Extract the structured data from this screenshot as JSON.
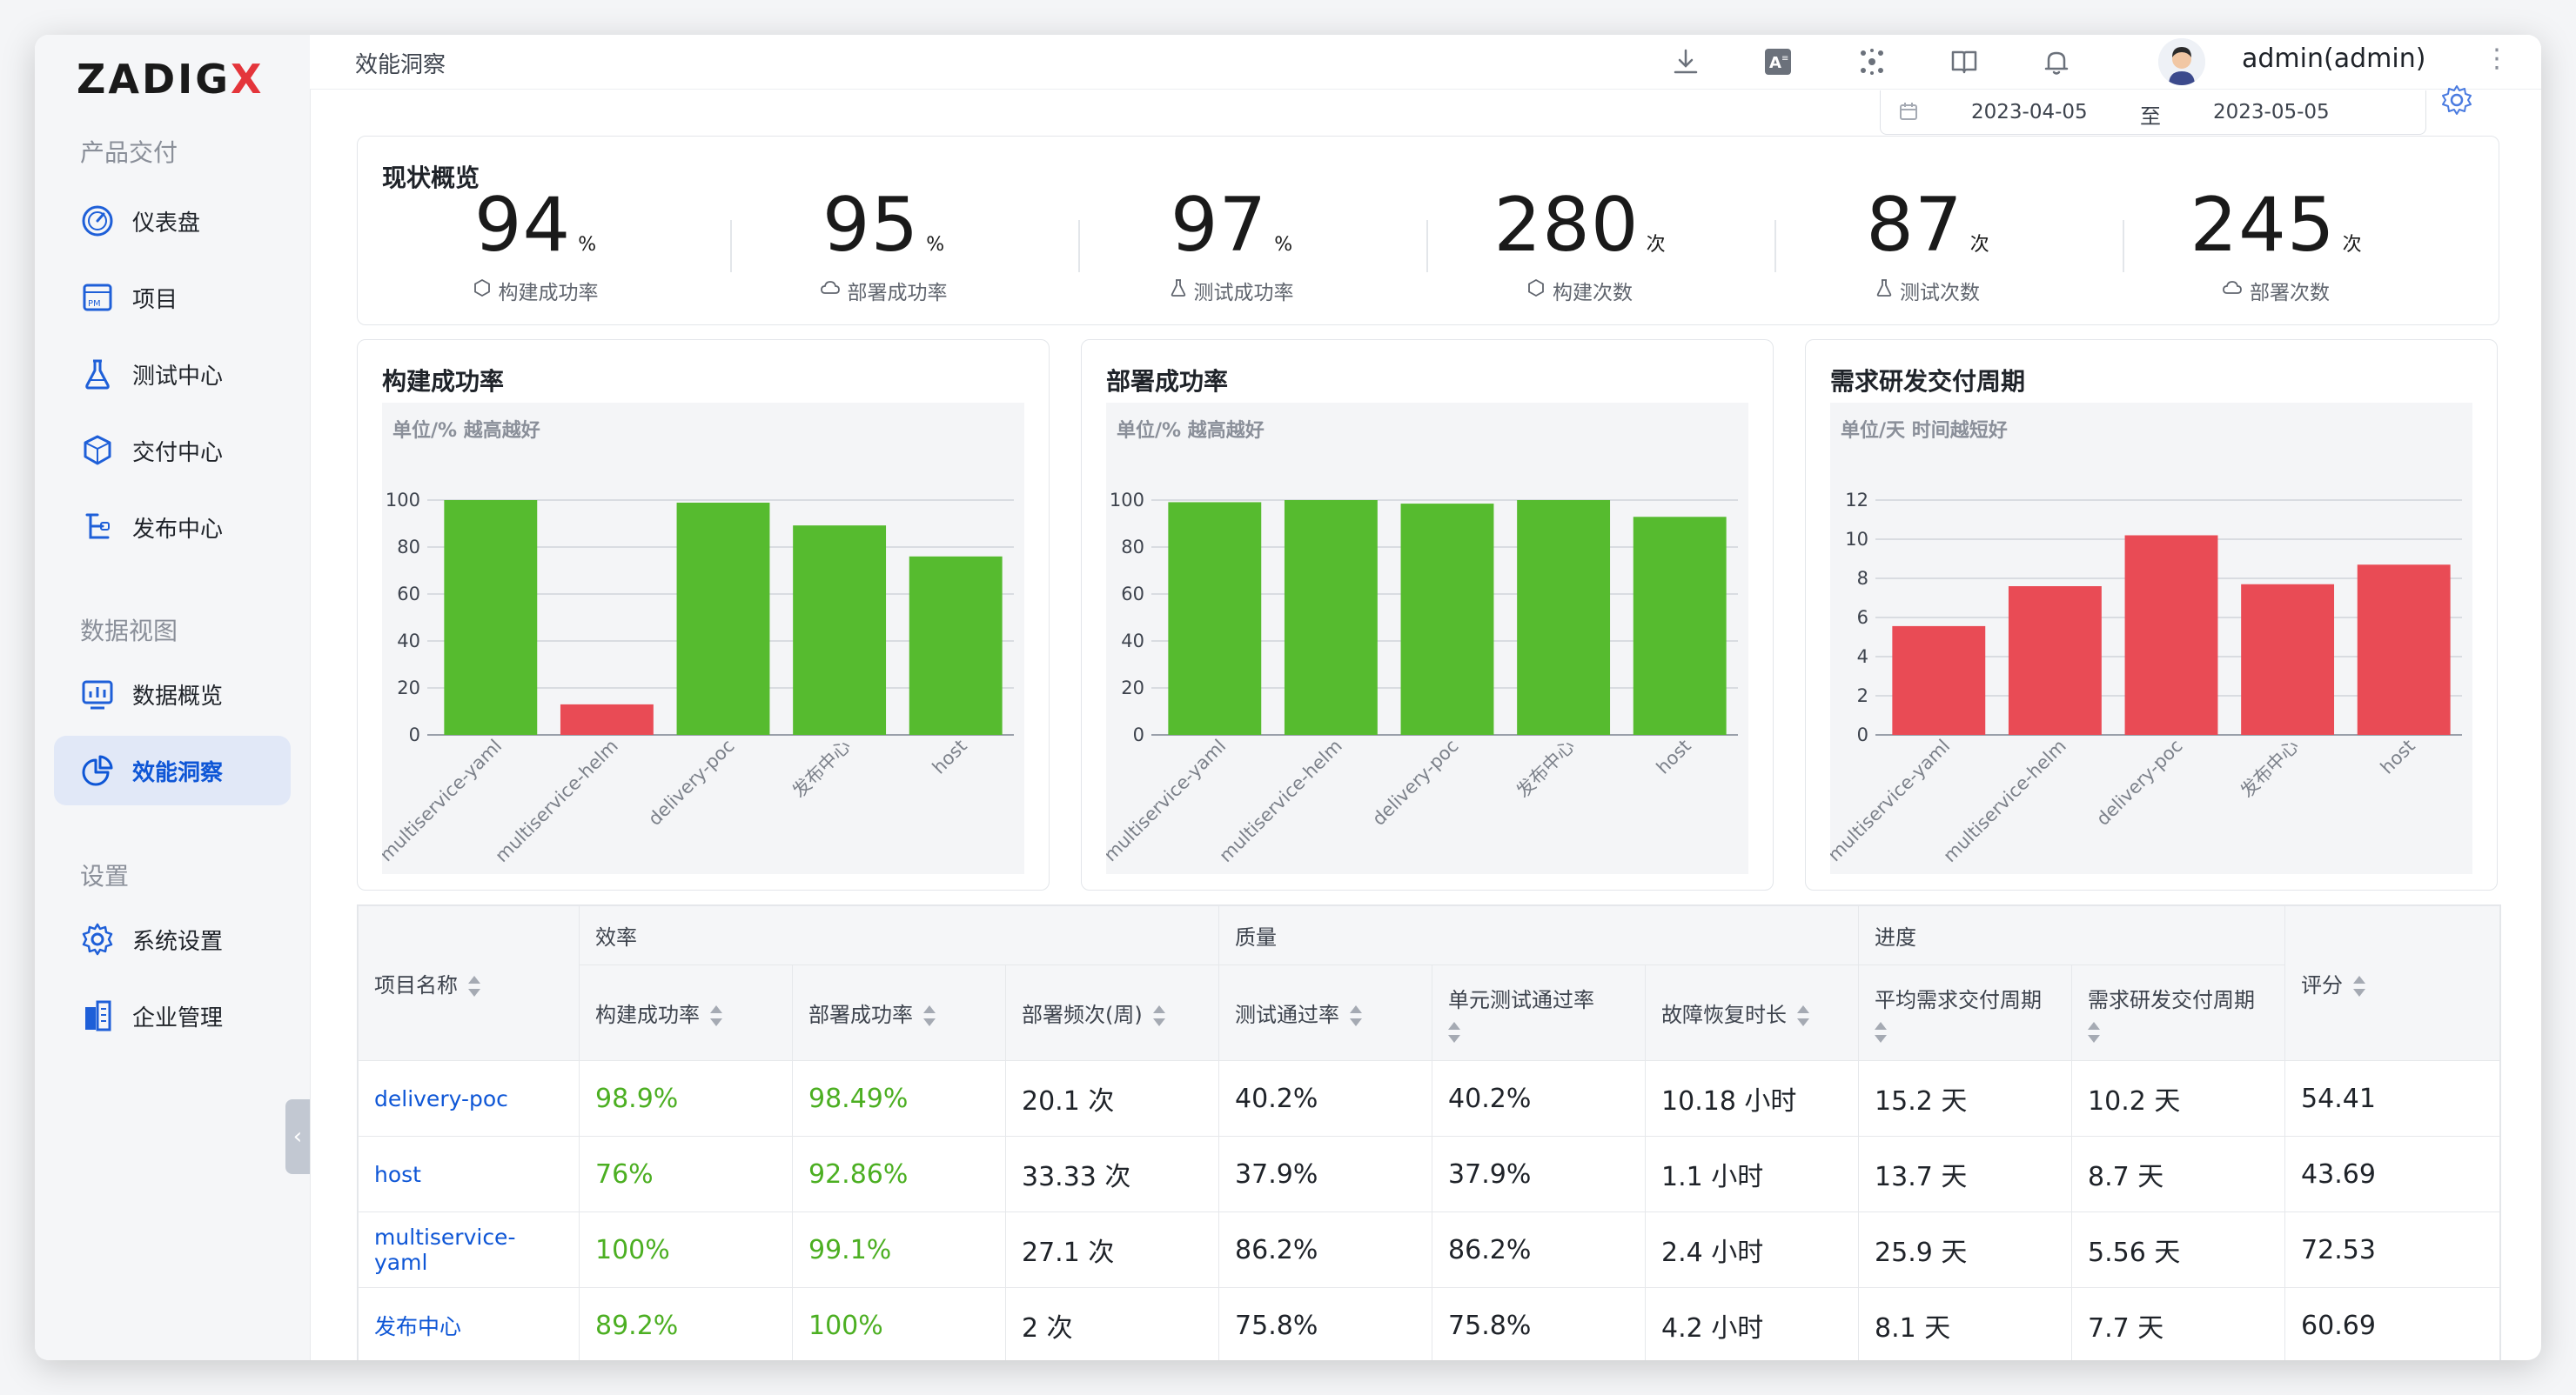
{
  "app": {
    "logo_text": "ZADIG",
    "logo_x": "X"
  },
  "sidebar": {
    "sections": [
      {
        "title": "产品交付"
      },
      {
        "title": "数据视图"
      },
      {
        "title": "设置"
      }
    ],
    "items": [
      {
        "label": "仪表盘",
        "icon": "dashboard-icon"
      },
      {
        "label": "项目",
        "icon": "project-icon"
      },
      {
        "label": "测试中心",
        "icon": "flask-icon"
      },
      {
        "label": "交付中心",
        "icon": "package-icon"
      },
      {
        "label": "发布中心",
        "icon": "release-icon"
      },
      {
        "label": "数据概览",
        "icon": "monitor-chart-icon"
      },
      {
        "label": "效能洞察",
        "icon": "pie-chart-icon",
        "active": true
      },
      {
        "label": "系统设置",
        "icon": "gear-icon"
      },
      {
        "label": "企业管理",
        "icon": "building-icon"
      }
    ]
  },
  "topbar": {
    "breadcrumb": "效能洞察",
    "username": "admin(admin)",
    "icons": [
      "download-icon",
      "translate-icon",
      "apps-icon",
      "book-icon",
      "bell-icon"
    ]
  },
  "date_range": {
    "start": "2023-04-05",
    "separator": "至",
    "end": "2023-05-05"
  },
  "overview": {
    "title": "现状概览",
    "stats": [
      {
        "value": "94",
        "unit": "%",
        "label": "构建成功率"
      },
      {
        "value": "95",
        "unit": "%",
        "label": "部署成功率"
      },
      {
        "value": "97",
        "unit": "%",
        "label": "测试成功率"
      },
      {
        "value": "280",
        "unit": "次",
        "label": "构建次数"
      },
      {
        "value": "87",
        "unit": "次",
        "label": "测试次数"
      },
      {
        "value": "245",
        "unit": "次",
        "label": "部署次数"
      }
    ]
  },
  "chart_data": [
    {
      "type": "bar",
      "title": "构建成功率",
      "subtitle": "单位/% 越高越好",
      "categories": [
        "multiservice-yaml",
        "multiservice-helm",
        "delivery-poc",
        "发布中心",
        "host"
      ],
      "values": [
        100,
        13,
        98.9,
        89.2,
        76
      ],
      "bar_colors": [
        "#56bb2f",
        "#e94b55",
        "#56bb2f",
        "#56bb2f",
        "#56bb2f"
      ],
      "ylim": [
        0,
        100
      ],
      "yticks": [
        0,
        20,
        40,
        60,
        80,
        100
      ]
    },
    {
      "type": "bar",
      "title": "部署成功率",
      "subtitle": "单位/% 越高越好",
      "categories": [
        "multiservice-yaml",
        "multiservice-helm",
        "delivery-poc",
        "发布中心",
        "host"
      ],
      "values": [
        99.1,
        100,
        98.49,
        100,
        92.86
      ],
      "bar_colors": [
        "#56bb2f",
        "#56bb2f",
        "#56bb2f",
        "#56bb2f",
        "#56bb2f"
      ],
      "ylim": [
        0,
        100
      ],
      "yticks": [
        0,
        20,
        40,
        60,
        80,
        100
      ]
    },
    {
      "type": "bar",
      "title": "需求研发交付周期",
      "subtitle": "单位/天 时间越短好",
      "categories": [
        "multiservice-yaml",
        "multiservice-helm",
        "delivery-poc",
        "发布中心",
        "host"
      ],
      "values": [
        5.56,
        7.6,
        10.2,
        7.7,
        8.7
      ],
      "bar_colors": [
        "#e94b55",
        "#e94b55",
        "#e94b55",
        "#e94b55",
        "#e94b55"
      ],
      "ylim": [
        0,
        12
      ],
      "yticks": [
        0,
        2,
        4,
        6,
        8,
        10,
        12
      ]
    }
  ],
  "table": {
    "project_header": "项目名称",
    "score_header": "评分",
    "groups": [
      "效率",
      "质量",
      "进度"
    ],
    "columns": [
      "构建成功率",
      "部署成功率",
      "部署频次(周)",
      "测试通过率",
      "单元测试通过率",
      "故障恢复时长",
      "平均需求交付周期",
      "需求研发交付周期"
    ],
    "rows": [
      {
        "name": "delivery-poc",
        "cells": [
          "98.9%",
          "98.49%",
          "20.1 次",
          "40.2%",
          "40.2%",
          "10.18 小时",
          "15.2 天",
          "10.2 天"
        ],
        "score": "54.41"
      },
      {
        "name": "host",
        "cells": [
          "76%",
          "92.86%",
          "33.33 次",
          "37.9%",
          "37.9%",
          "1.1 小时",
          "13.7 天",
          "8.7 天"
        ],
        "score": "43.69"
      },
      {
        "name": "multiservice-yaml",
        "cells": [
          "100%",
          "99.1%",
          "27.1 次",
          "86.2%",
          "86.2%",
          "2.4 小时",
          "25.9 天",
          "5.56 天"
        ],
        "score": "72.53"
      },
      {
        "name": "发布中心",
        "cells": [
          "89.2%",
          "100%",
          "2 次",
          "75.8%",
          "75.8%",
          "4.2 小时",
          "8.1 天",
          "7.7 天"
        ],
        "score": "60.69"
      }
    ]
  }
}
